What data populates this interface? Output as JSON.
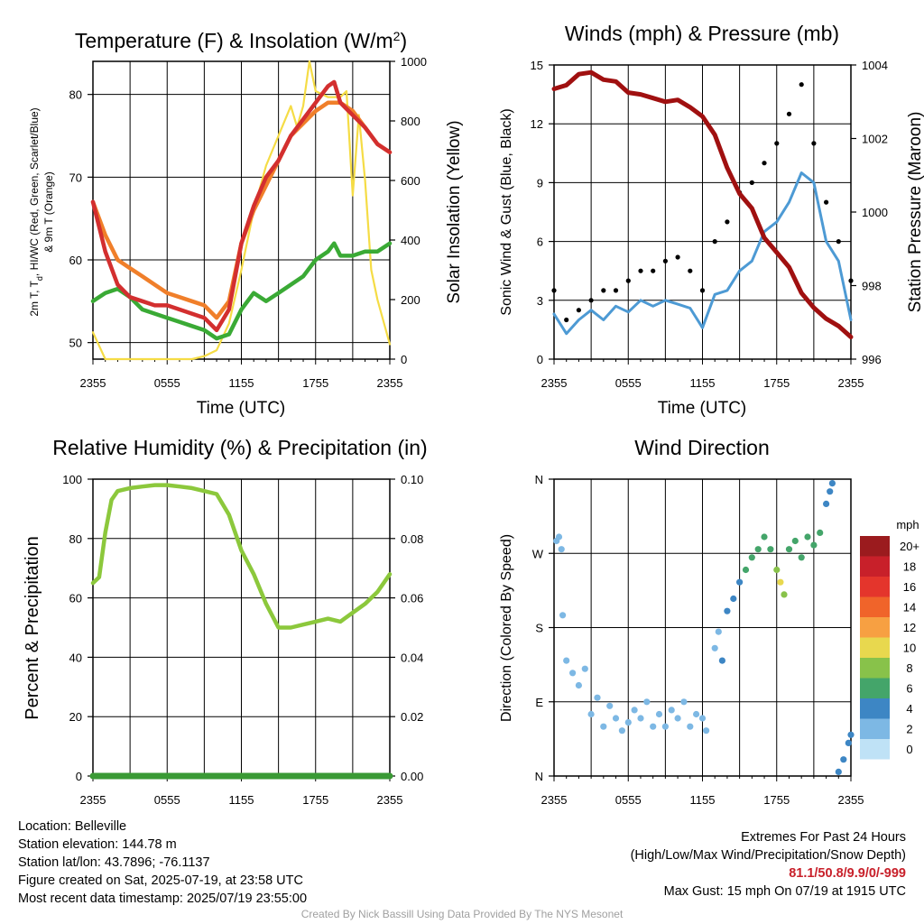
{
  "chart_data": [
    {
      "type": "line",
      "title": "Temperature (F) & Insolation (W/m²)",
      "xlabel": "Time (UTC)",
      "ylabel": "2m T, T_d, HI/WC (Red, Green, Scarlet/Blue) & 9m T (Orange)",
      "y2label": "Solar Insolation (Yellow)",
      "x_ticks": [
        "2355",
        "0555",
        "1155",
        "1755",
        "2355"
      ],
      "ylim": [
        48,
        84
      ],
      "y_ticks": [
        50,
        60,
        70,
        80
      ],
      "y2lim": [
        0,
        1000
      ],
      "y2_ticks": [
        0,
        200,
        400,
        600,
        800,
        1000
      ],
      "grid": true,
      "x_hours": [
        0,
        1,
        2,
        3,
        4,
        5,
        6,
        7,
        8,
        9,
        10,
        11,
        12,
        13,
        14,
        15,
        16,
        17,
        18,
        19,
        19.5,
        20,
        21,
        22,
        23,
        24
      ],
      "series": [
        {
          "color": "#d32f2f",
          "values": [
            67,
            61,
            57,
            55.5,
            55,
            54.5,
            54.5,
            54,
            53.5,
            53,
            51.5,
            54,
            62,
            66.5,
            70,
            72,
            75,
            77,
            79,
            81,
            81.5,
            79,
            77.5,
            76,
            74,
            73
          ]
        },
        {
          "color": "#f07f2a",
          "values": [
            67,
            63,
            60,
            59,
            58,
            57,
            56,
            55.5,
            55,
            54.5,
            53,
            55,
            62,
            66,
            69,
            72,
            75,
            76.5,
            78,
            79,
            79,
            79,
            78,
            76,
            74,
            73
          ]
        },
        {
          "color": "#3aaa35",
          "values": [
            55,
            56,
            56.5,
            55.5,
            54,
            53.5,
            53,
            52.5,
            52,
            51.5,
            50.5,
            51,
            54,
            56,
            55,
            56,
            57,
            58,
            60,
            61,
            62,
            60.5,
            60.5,
            61,
            61,
            62
          ]
        }
      ],
      "series2": [
        {
          "color": "#f5dc45",
          "x_hours": [
            0,
            1,
            2,
            3,
            4,
            5,
            6,
            7,
            8,
            9,
            10,
            11,
            12,
            13,
            14,
            15,
            16,
            16.5,
            17,
            17.5,
            18,
            19,
            20,
            20.5,
            21,
            21.5,
            22,
            22.5,
            23,
            24
          ],
          "values": [
            90,
            0,
            0,
            0,
            0,
            0,
            0,
            0,
            0,
            10,
            30,
            120,
            300,
            500,
            650,
            750,
            850,
            780,
            850,
            1000,
            900,
            880,
            880,
            900,
            550,
            820,
            600,
            300,
            200,
            50
          ]
        }
      ]
    },
    {
      "type": "line",
      "title": "Winds (mph) & Pressure (mb)",
      "xlabel": "Time (UTC)",
      "ylabel": "Sonic Wind & Gust (Blue, Black)",
      "y2label": "Station Pressure (Maroon)",
      "x_ticks": [
        "2355",
        "0555",
        "1155",
        "1755",
        "2355"
      ],
      "ylim": [
        0,
        15
      ],
      "y_ticks": [
        0,
        3,
        6,
        9,
        12,
        15
      ],
      "y2lim": [
        996,
        1004
      ],
      "y2_ticks": [
        996,
        998,
        1000,
        1002,
        1004
      ],
      "grid": true,
      "x_hours": [
        0,
        1,
        2,
        3,
        4,
        5,
        6,
        7,
        8,
        9,
        10,
        11,
        12,
        13,
        14,
        15,
        16,
        17,
        18,
        19,
        20,
        21,
        22,
        23,
        24
      ],
      "series": [
        {
          "color": "#4d9ad4",
          "values": [
            2.3,
            1.3,
            2.0,
            2.5,
            2.0,
            2.7,
            2.4,
            3.0,
            2.7,
            3.0,
            2.8,
            2.6,
            1.6,
            3.3,
            3.5,
            4.5,
            5.0,
            6.5,
            7.0,
            8.0,
            9.5,
            9.0,
            6.0,
            5.0,
            2.0
          ]
        },
        {
          "color": "#000000",
          "values": [
            3.5,
            2.0,
            2.5,
            3.0,
            3.5,
            3.5,
            4.0,
            4.5,
            4.5,
            5.0,
            5.2,
            4.5,
            3.5,
            6.0,
            7.0,
            8.5,
            9.0,
            10.0,
            11.0,
            12.5,
            14.0,
            11.0,
            8.0,
            6.0,
            4.0
          ]
        }
      ],
      "series2": [
        {
          "color": "#a01010",
          "values": [
            1003.35,
            1003.45,
            1003.75,
            1003.8,
            1003.6,
            1003.55,
            1003.25,
            1003.2,
            1003.1,
            1003.0,
            1003.05,
            1002.85,
            1002.6,
            1002.1,
            1001.2,
            1000.5,
            1000.1,
            999.3,
            998.9,
            998.5,
            997.8,
            997.4,
            997.1,
            996.9,
            996.6
          ]
        }
      ]
    },
    {
      "type": "line",
      "title": "Relative Humidity (%) & Precipitation (in)",
      "ylabel": "Percent & Precipitation",
      "x_ticks": [
        "2355",
        "0555",
        "1155",
        "1755",
        "2355"
      ],
      "ylim": [
        0,
        100
      ],
      "y_ticks": [
        0,
        20,
        40,
        60,
        80,
        100
      ],
      "y2lim": [
        0,
        0.1
      ],
      "y2_ticks": [
        "0.00",
        "0.02",
        "0.04",
        "0.06",
        "0.08",
        "0.10"
      ],
      "grid": true,
      "x_hours": [
        0,
        0.5,
        1,
        1.5,
        2,
        3,
        4,
        5,
        6,
        7,
        8,
        9,
        10,
        11,
        12,
        13,
        14,
        15,
        16,
        17,
        18,
        19,
        20,
        21,
        22,
        23,
        24
      ],
      "series": [
        {
          "color": "#8cc83c",
          "values": [
            65,
            67,
            82,
            93,
            96,
            97,
            97.5,
            98,
            98,
            97.5,
            97,
            96,
            95,
            88,
            76,
            68,
            58,
            50,
            50,
            51,
            52,
            53,
            52,
            55,
            58,
            62,
            68
          ]
        },
        {
          "color": "#3a9a35",
          "values": [
            0,
            0,
            0,
            0,
            0,
            0,
            0,
            0,
            0,
            0,
            0,
            0,
            0,
            0,
            0,
            0,
            0,
            0,
            0,
            0,
            0,
            0,
            0,
            0,
            0,
            0,
            0
          ]
        }
      ]
    },
    {
      "type": "scatter",
      "title": "Wind Direction",
      "ylabel": "Direction (Colored By Speed)",
      "x_ticks": [
        "2355",
        "0555",
        "1155",
        "1755",
        "2355"
      ],
      "y_ticks": [
        "N",
        "E",
        "S",
        "W",
        "N"
      ],
      "ylim": [
        0,
        360
      ],
      "grid": true,
      "legend_title": "mph",
      "legend_labels": [
        "20+",
        "18",
        "16",
        "14",
        "12",
        "10",
        "8",
        "6",
        "4",
        "2",
        "0"
      ],
      "legend_colors": [
        "#9b1b1e",
        "#c8202a",
        "#e4352c",
        "#f0642a",
        "#f7a042",
        "#e8d84e",
        "#88c24a",
        "#44a56a",
        "#3d86c4",
        "#7db8e4",
        "#bfe2f6"
      ],
      "points": [
        {
          "x": 0.2,
          "y": 285,
          "speed": 2
        },
        {
          "x": 0.4,
          "y": 290,
          "speed": 1
        },
        {
          "x": 0.6,
          "y": 275,
          "speed": 1
        },
        {
          "x": 0.7,
          "y": 195,
          "speed": 1
        },
        {
          "x": 1.0,
          "y": 140,
          "speed": 2
        },
        {
          "x": 1.5,
          "y": 125,
          "speed": 2
        },
        {
          "x": 2.0,
          "y": 110,
          "speed": 2
        },
        {
          "x": 2.5,
          "y": 130,
          "speed": 1
        },
        {
          "x": 3.0,
          "y": 75,
          "speed": 2
        },
        {
          "x": 3.5,
          "y": 95,
          "speed": 2
        },
        {
          "x": 4.0,
          "y": 60,
          "speed": 2
        },
        {
          "x": 4.5,
          "y": 85,
          "speed": 2
        },
        {
          "x": 5.0,
          "y": 70,
          "speed": 2
        },
        {
          "x": 5.5,
          "y": 55,
          "speed": 2
        },
        {
          "x": 6.0,
          "y": 65,
          "speed": 2
        },
        {
          "x": 6.5,
          "y": 80,
          "speed": 2
        },
        {
          "x": 7.0,
          "y": 70,
          "speed": 2
        },
        {
          "x": 7.5,
          "y": 90,
          "speed": 2
        },
        {
          "x": 8.0,
          "y": 60,
          "speed": 2
        },
        {
          "x": 8.5,
          "y": 75,
          "speed": 2
        },
        {
          "x": 9.0,
          "y": 60,
          "speed": 2
        },
        {
          "x": 9.5,
          "y": 80,
          "speed": 2
        },
        {
          "x": 10.0,
          "y": 70,
          "speed": 2
        },
        {
          "x": 10.5,
          "y": 90,
          "speed": 2
        },
        {
          "x": 11.0,
          "y": 60,
          "speed": 2
        },
        {
          "x": 11.5,
          "y": 75,
          "speed": 2
        },
        {
          "x": 12.0,
          "y": 70,
          "speed": 2
        },
        {
          "x": 12.3,
          "y": 55,
          "speed": 1
        },
        {
          "x": 13.0,
          "y": 155,
          "speed": 2
        },
        {
          "x": 13.3,
          "y": 175,
          "speed": 2
        },
        {
          "x": 13.6,
          "y": 140,
          "speed": 3
        },
        {
          "x": 14.0,
          "y": 200,
          "speed": 3
        },
        {
          "x": 14.5,
          "y": 215,
          "speed": 3
        },
        {
          "x": 15.0,
          "y": 235,
          "speed": 4
        },
        {
          "x": 15.5,
          "y": 250,
          "speed": 5
        },
        {
          "x": 16.0,
          "y": 265,
          "speed": 5
        },
        {
          "x": 16.5,
          "y": 275,
          "speed": 5
        },
        {
          "x": 17.0,
          "y": 290,
          "speed": 5
        },
        {
          "x": 17.5,
          "y": 275,
          "speed": 6
        },
        {
          "x": 18.0,
          "y": 250,
          "speed": 8
        },
        {
          "x": 18.3,
          "y": 235,
          "speed": 9
        },
        {
          "x": 18.6,
          "y": 220,
          "speed": 7
        },
        {
          "x": 19.0,
          "y": 275,
          "speed": 6
        },
        {
          "x": 19.5,
          "y": 285,
          "speed": 6
        },
        {
          "x": 20.0,
          "y": 265,
          "speed": 5
        },
        {
          "x": 20.5,
          "y": 290,
          "speed": 5
        },
        {
          "x": 21.0,
          "y": 280,
          "speed": 5
        },
        {
          "x": 21.5,
          "y": 295,
          "speed": 5
        },
        {
          "x": 22.0,
          "y": 330,
          "speed": 3
        },
        {
          "x": 22.3,
          "y": 345,
          "speed": 3
        },
        {
          "x": 22.5,
          "y": 355,
          "speed": 3
        },
        {
          "x": 23.0,
          "y": 5,
          "speed": 3
        },
        {
          "x": 23.4,
          "y": 20,
          "speed": 3
        },
        {
          "x": 23.8,
          "y": 40,
          "speed": 3
        },
        {
          "x": 24.0,
          "y": 50,
          "speed": 3
        }
      ]
    }
  ],
  "footer": {
    "location": "Location: Belleville",
    "elevation": "Station elevation: 144.78 m",
    "latlon": "Station lat/lon: 43.7896; -76.1137",
    "created": "Figure created on Sat, 2025-07-19, at 23:58 UTC",
    "recent": "Most recent data timestamp: 2025/07/19 23:55:00",
    "extremes_title": "Extremes For Past 24 Hours",
    "extremes_sub": "(High/Low/Max Wind/Precipitation/Snow Depth)",
    "extremes_values": "81.1/50.8/9.9/0/-999",
    "max_gust": "Max Gust: 15 mph On 07/19 at 1915 UTC",
    "credit": "Created By Nick Bassill Using Data Provided By The NYS Mesonet"
  }
}
